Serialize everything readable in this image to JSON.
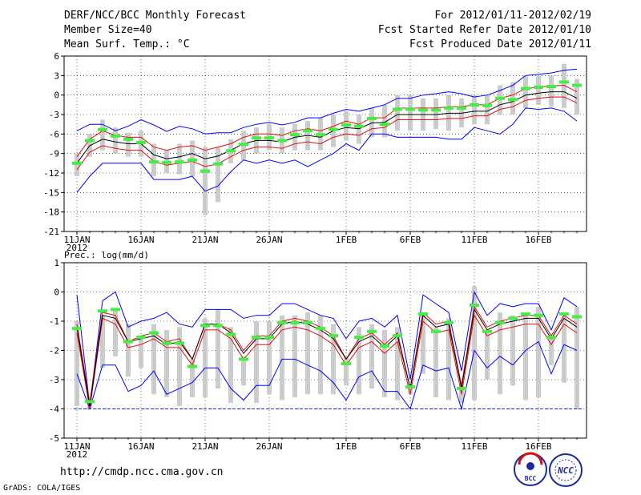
{
  "header": {
    "title": "DERF/NCC/BCC Monthly Forecast",
    "member_size": "Member Size=40",
    "variable": "Mean Surf. Temp.: °C",
    "period": "For 2012/01/11-2012/02/19",
    "fcst_started": "Fcst Started Refer Date 2012/01/10",
    "fcst_produced": "Fcst Produced Date 2012/01/11"
  },
  "footer": {
    "url": "http://cmdp.ncc.cma.gov.cn",
    "credit": "GrADS: COLA/IGES"
  },
  "logos": {
    "bcc": "BCC",
    "ncc": "NCC"
  },
  "colors": {
    "ensemble_mean": "#000000",
    "spread": "#e01010",
    "envelope": "#0000ff",
    "observed": "#44ee44",
    "box": "#cccccc"
  },
  "chart_data": [
    {
      "type": "line",
      "title": "Mean Surf. Temp.: °C",
      "x": [
        1,
        2,
        3,
        4,
        5,
        6,
        7,
        8,
        9,
        10,
        11,
        12,
        13,
        14,
        15,
        16,
        17,
        18,
        19,
        20,
        21,
        22,
        23,
        24,
        25,
        26,
        27,
        28,
        29,
        30,
        31,
        32,
        33,
        34,
        35,
        36,
        37,
        38,
        39,
        40
      ],
      "xticks": [
        "11JAN",
        "16JAN",
        "21JAN",
        "26JAN",
        "1FEB",
        "6FEB",
        "11FEB",
        "16FEB"
      ],
      "xtick_at": [
        1,
        6,
        11,
        16,
        22,
        27,
        32,
        37
      ],
      "xsub": "2012",
      "ylim": [
        -21,
        6
      ],
      "yticks": [
        6,
        3,
        0,
        -3,
        -6,
        -9,
        -12,
        -15,
        -18,
        -21
      ],
      "series": [
        {
          "name": "max",
          "values": [
            -5.5,
            -4.5,
            -4.5,
            -5.5,
            -4.8,
            -3.8,
            -4.6,
            -5.6,
            -4.8,
            -5.2,
            -6,
            -5.8,
            -5.8,
            -5,
            -4.5,
            -4.2,
            -4.6,
            -4.2,
            -3.5,
            -3.5,
            -2.8,
            -2.2,
            -2.5,
            -2,
            -1.5,
            -0.5,
            -0.5,
            0,
            0.2,
            0.5,
            0.2,
            -0.3,
            0,
            0.7,
            1.5,
            3,
            3.2,
            3.4,
            3.8,
            4
          ]
        },
        {
          "name": "upper",
          "values": [
            -9.5,
            -6.8,
            -5.5,
            -6.2,
            -6.5,
            -6.5,
            -8,
            -8.5,
            -8,
            -7.8,
            -8.5,
            -8,
            -7.5,
            -6.5,
            -6,
            -6,
            -6.2,
            -5.5,
            -5.2,
            -5.5,
            -4.8,
            -4,
            -4.5,
            -3.5,
            -3.5,
            -2,
            -2,
            -2,
            -2,
            -1.8,
            -1.8,
            -1.5,
            -1.5,
            -0.5,
            0,
            1,
            1.2,
            1.4,
            1.5,
            0.5
          ]
        },
        {
          "name": "mean",
          "values": [
            -10.5,
            -7.8,
            -6.8,
            -7.2,
            -7.5,
            -7.5,
            -9.2,
            -9.8,
            -9.5,
            -9,
            -9.8,
            -9.4,
            -8.5,
            -7.5,
            -7,
            -7,
            -7.2,
            -6.5,
            -6.2,
            -6.5,
            -5.5,
            -5,
            -5.2,
            -4.3,
            -4.2,
            -3,
            -3,
            -3,
            -3,
            -2.8,
            -2.8,
            -2.5,
            -2.5,
            -1.5,
            -1,
            0,
            0.3,
            0.5,
            0.5,
            -0.5
          ]
        },
        {
          "name": "lower",
          "values": [
            -11.5,
            -8.8,
            -7.8,
            -8.2,
            -8.5,
            -8.5,
            -10.2,
            -10.8,
            -10.5,
            -10.2,
            -11,
            -10.6,
            -9.5,
            -8.5,
            -8,
            -8,
            -8.2,
            -7.5,
            -7.2,
            -7.5,
            -6.5,
            -6,
            -6.2,
            -5.2,
            -5,
            -3.8,
            -3.8,
            -3.8,
            -3.8,
            -3.6,
            -3.6,
            -3.2,
            -3.2,
            -2.2,
            -1.8,
            -0.8,
            -0.5,
            -0.3,
            -0.3,
            -1.2
          ]
        },
        {
          "name": "min",
          "values": [
            -15,
            -12.5,
            -10.5,
            -10.5,
            -10.5,
            -10.5,
            -13,
            -13,
            -13,
            -12.5,
            -14.8,
            -14,
            -11.8,
            -10,
            -10.5,
            -10,
            -10.5,
            -10,
            -11,
            -10,
            -9,
            -7.5,
            -8.5,
            -6,
            -6,
            -6.5,
            -6.5,
            -6.5,
            -6.5,
            -6.8,
            -6.8,
            -5,
            -5.5,
            -6,
            -4.5,
            -2,
            -2.2,
            -2,
            -2.5,
            -4
          ]
        },
        {
          "name": "observed",
          "values": [
            -10.5,
            -7,
            -5.3,
            -6.3,
            -6.8,
            -7.3,
            -10.3,
            -10.4,
            -10.3,
            -10,
            -11.7,
            -10.6,
            -8.6,
            -7.6,
            -6.6,
            -6.6,
            -7,
            -6.1,
            -5.5,
            -6.1,
            -5.3,
            -4.6,
            -4.8,
            -3.6,
            -4.5,
            -2.2,
            -2.2,
            -2.3,
            -2.3,
            -2,
            -2,
            -1.5,
            -1.6,
            -0.5,
            -0.7,
            1,
            1.2,
            1.3,
            2,
            1.5
          ]
        },
        {
          "name": "box_top",
          "values": [
            -9,
            -6,
            -3.8,
            -5,
            -5.8,
            -5.5,
            -7.5,
            -8.5,
            -7.5,
            -7,
            -8,
            -8,
            -6.8,
            -5.5,
            -5,
            -4.5,
            -5,
            -4.5,
            -4,
            -3.5,
            -3,
            -2.5,
            -3,
            -2,
            -1.5,
            0,
            0,
            -0.5,
            -0.5,
            0,
            -0.5,
            0,
            0,
            1.5,
            2,
            3,
            3,
            3,
            4.8,
            2.5
          ]
        },
        {
          "name": "box_bottom",
          "values": [
            -12.5,
            -9.5,
            -8.5,
            -9,
            -9.5,
            -9.5,
            -12.5,
            -12,
            -12.2,
            -12.5,
            -18.5,
            -16.5,
            -10.5,
            -10,
            -9,
            -8.5,
            -9,
            -8.5,
            -8.5,
            -8.5,
            -8,
            -7,
            -7.5,
            -6.5,
            -6.5,
            -5.5,
            -5.5,
            -5.5,
            -5.2,
            -5.5,
            -5,
            -4.5,
            -4.5,
            -3,
            -3,
            -2,
            -1.5,
            -1.8,
            -2,
            -3
          ]
        }
      ]
    },
    {
      "type": "line",
      "title": "Prec.: log(mm/d)",
      "x": [
        1,
        2,
        3,
        4,
        5,
        6,
        7,
        8,
        9,
        10,
        11,
        12,
        13,
        14,
        15,
        16,
        17,
        18,
        19,
        20,
        21,
        22,
        23,
        24,
        25,
        26,
        27,
        28,
        29,
        30,
        31,
        32,
        33,
        34,
        35,
        36,
        37,
        38,
        39,
        40
      ],
      "xticks": [
        "11JAN",
        "16JAN",
        "21JAN",
        "26JAN",
        "1FEB",
        "6FEB",
        "11FEB",
        "16FEB"
      ],
      "xtick_at": [
        1,
        6,
        11,
        16,
        22,
        27,
        32,
        37
      ],
      "xsub": "2012",
      "ylim": [
        -5,
        1
      ],
      "yticks": [
        1,
        0,
        -1,
        -2,
        -3,
        -4,
        -5
      ],
      "series": [
        {
          "name": "max",
          "values": [
            -0.1,
            -3.9,
            -0.3,
            0,
            -1.2,
            -1,
            -0.9,
            -0.7,
            -1.1,
            -1.2,
            -0.6,
            -0.6,
            -0.6,
            -0.9,
            -0.8,
            -0.8,
            -0.4,
            -0.4,
            -0.6,
            -0.8,
            -0.9,
            -1.6,
            -1,
            -0.9,
            -1.2,
            -0.8,
            -3,
            -0.1,
            -0.4,
            -0.7,
            -2.7,
            0,
            -0.8,
            -0.4,
            -0.5,
            -0.4,
            -0.4,
            -1.3,
            -0.2,
            -0.5
          ]
        },
        {
          "name": "upper",
          "values": [
            -1.1,
            -3.8,
            -0.7,
            -0.8,
            -1.7,
            -1.5,
            -1.4,
            -1.7,
            -1.6,
            -2.3,
            -1.1,
            -1.1,
            -1.3,
            -2,
            -1.5,
            -1.5,
            -1,
            -0.9,
            -1,
            -1.2,
            -1.5,
            -2.3,
            -1.6,
            -1.4,
            -1.8,
            -1.4,
            -3.3,
            -0.7,
            -1.1,
            -1,
            -3.2,
            -0.5,
            -1.2,
            -1,
            -0.9,
            -0.8,
            -0.8,
            -1.5,
            -0.8,
            -1.1
          ]
        },
        {
          "name": "mean",
          "values": [
            -1.2,
            -3.9,
            -0.8,
            -0.9,
            -1.7,
            -1.6,
            -1.5,
            -1.8,
            -1.7,
            -2.3,
            -1.1,
            -1.1,
            -1.4,
            -2.1,
            -1.6,
            -1.6,
            -1.1,
            -1,
            -1.1,
            -1.3,
            -1.6,
            -2.3,
            -1.7,
            -1.5,
            -1.9,
            -1.5,
            -3.3,
            -0.8,
            -1.2,
            -1.1,
            -3.3,
            -0.6,
            -1.3,
            -1.1,
            -1,
            -0.9,
            -0.9,
            -1.6,
            -0.9,
            -1.2
          ]
        },
        {
          "name": "lower",
          "values": [
            -1.4,
            -4,
            -0.9,
            -1.1,
            -1.9,
            -1.8,
            -1.6,
            -1.9,
            -1.9,
            -2.5,
            -1.3,
            -1.3,
            -1.6,
            -2.3,
            -1.8,
            -1.8,
            -1.3,
            -1.2,
            -1.3,
            -1.5,
            -1.8,
            -2.5,
            -1.9,
            -1.7,
            -2.1,
            -1.7,
            -3.5,
            -1,
            -1.4,
            -1.3,
            -3.5,
            -0.8,
            -1.5,
            -1.3,
            -1.2,
            -1.1,
            -1.1,
            -1.8,
            -1.1,
            -1.4
          ]
        },
        {
          "name": "min",
          "values": [
            -2.8,
            -4,
            -2.5,
            -2.5,
            -3.4,
            -3.2,
            -2.7,
            -3.5,
            -3.3,
            -3.1,
            -2.6,
            -2.6,
            -3.3,
            -3.7,
            -3.2,
            -3.2,
            -2.3,
            -2.3,
            -2.5,
            -2.7,
            -3.1,
            -3.7,
            -2.9,
            -2.7,
            -3.4,
            -3.4,
            -4,
            -2.5,
            -2.7,
            -2.6,
            -4,
            -2,
            -2.6,
            -2.2,
            -2.5,
            -2,
            -1.7,
            -2.8,
            -1.8,
            -2
          ]
        },
        {
          "name": "observed",
          "values": [
            -1.25,
            -3.75,
            -0.65,
            -0.6,
            -1.7,
            -1.55,
            -1.4,
            -1.75,
            -1.75,
            -2.55,
            -1.15,
            -1.15,
            -1.45,
            -2.3,
            -1.55,
            -1.55,
            -1.05,
            -1.05,
            -1.05,
            -1.25,
            -1.5,
            -2.45,
            -1.55,
            -1.35,
            -1.85,
            -1.5,
            -3.25,
            -0.75,
            -1.35,
            -1.05,
            -3.3,
            -0.45,
            -1.35,
            -1.05,
            -0.9,
            -0.75,
            -0.8,
            -1.55,
            -0.75,
            -0.85
          ]
        },
        {
          "name": "box_top",
          "values": [
            -1,
            -3.8,
            -0.8,
            -0.6,
            -1.1,
            -1.5,
            -1.1,
            -1.3,
            -1.2,
            -2.3,
            -0.9,
            -0.6,
            -1.2,
            -2.2,
            -1,
            -1,
            -0.8,
            -0.8,
            -0.7,
            -0.8,
            -1.1,
            -2.2,
            -1.2,
            -1.1,
            -1.3,
            -1.2,
            -3.2,
            -0.8,
            -1.2,
            -0.9,
            -3.2,
            0.2,
            -1.3,
            -0.7,
            -0.8,
            -0.7,
            -0.5,
            -1.6,
            -0.8,
            -0.5
          ]
        },
        {
          "name": "box_bottom",
          "values": [
            -3.9,
            -4,
            -2.6,
            -2.2,
            -2.9,
            -2.6,
            -3.5,
            -3.6,
            -3.9,
            -3.6,
            -3.6,
            -3.3,
            -3.8,
            -3.2,
            -3.8,
            -3.5,
            -3.7,
            -3.6,
            -3.5,
            -3.5,
            -3.5,
            -3.2,
            -3.5,
            -3.3,
            -3.6,
            -3.7,
            -3.5,
            -2.8,
            -3.6,
            -3.7,
            -3.8,
            -3.7,
            -3,
            -3.5,
            -3.2,
            -3.7,
            -3.6,
            -2.5,
            -3.1,
            -4
          ]
        }
      ]
    }
  ]
}
